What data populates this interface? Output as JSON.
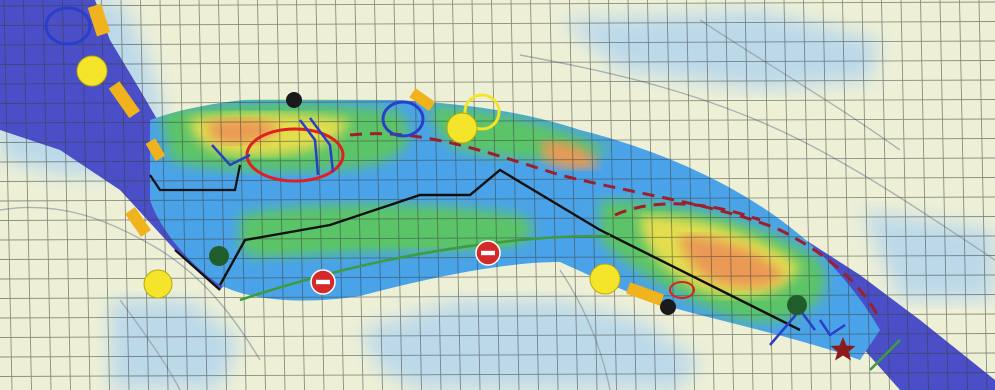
{
  "map": {
    "colors": {
      "paper": "#eef0d6",
      "land_pale": "#dfe4c2",
      "sea_pale": "#bcd9ea",
      "deep_channel": "#4a4fc7",
      "shallow_blue": "#4aa3e8",
      "green_zone": "#5cc468",
      "yellow_zone": "#e4de4e",
      "orange_zone": "#eb9a55",
      "grid_line": "#3a3e3a",
      "black_line": "#111111",
      "dashed_red": "#9c1f2a",
      "green_line": "#3e9b3e",
      "marker_yellow": "#f4e52a",
      "marker_dark_green": "#1f5e2c",
      "marker_orange": "#f0b21d",
      "no_entry_red": "#d62a2a",
      "star_red": "#8c1a1a",
      "ring_blue": "#2a3fc9",
      "ring_red": "#e02020",
      "ring_yellow": "#f4e52a"
    },
    "legend_icons": {
      "yellow_circle": "buoy-icon",
      "dark_circle": "marker-post-icon",
      "no_entry": "no-entry-icon",
      "star": "star-icon",
      "bar": "barrier-icon"
    }
  }
}
